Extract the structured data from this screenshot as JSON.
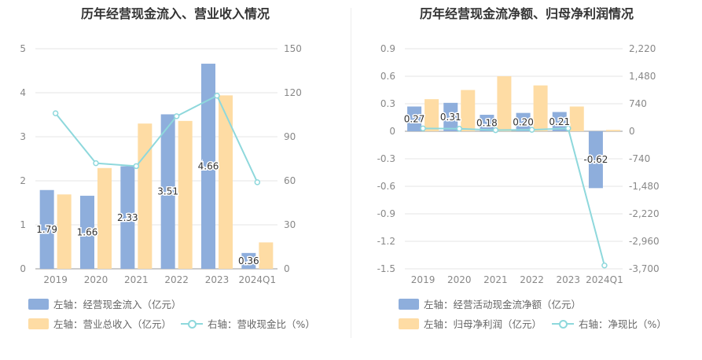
{
  "colors": {
    "bar_primary": "#8eaedc",
    "bar_secondary": "#fedca4",
    "line": "#8ed8dc",
    "grid": "#e6e6e6",
    "axis_text": "#888888"
  },
  "chart_data": [
    {
      "type": "bar",
      "title": "历年经营现金流入、营业收入情况",
      "categories": [
        "2019",
        "2020",
        "2021",
        "2022",
        "2023",
        "2024Q1"
      ],
      "y_left": {
        "min": 0,
        "max": 5,
        "ticks": [
          "0",
          "1",
          "2",
          "3",
          "4",
          "5"
        ]
      },
      "y_right": {
        "min": 0,
        "max": 150,
        "ticks": [
          "0",
          "30",
          "60",
          "90",
          "120",
          "150"
        ]
      },
      "series": [
        {
          "name": "左轴：经营现金流入（亿元）",
          "axis": "left",
          "kind": "bar",
          "values": [
            1.79,
            1.66,
            2.33,
            3.51,
            4.66,
            0.36
          ],
          "labels": [
            "1.79",
            "1.66",
            "2.33",
            "3.51",
            "4.66",
            "0.36"
          ]
        },
        {
          "name": "左轴：营业总收入（亿元）",
          "axis": "left",
          "kind": "bar",
          "values": [
            1.69,
            2.29,
            3.3,
            3.36,
            3.94,
            0.6
          ]
        },
        {
          "name": "右轴：营收现金比（%）",
          "axis": "right",
          "kind": "line",
          "values": [
            106,
            72,
            70,
            104,
            118,
            59
          ]
        }
      ],
      "legend": [
        "左轴：经营现金流入（亿元）",
        "左轴：营业总收入（亿元）",
        "右轴：营收现金比（%）"
      ]
    },
    {
      "type": "bar",
      "title": "历年经营现金流净额、归母净利润情况",
      "categories": [
        "2019",
        "2020",
        "2021",
        "2022",
        "2023",
        "2024Q1"
      ],
      "y_left": {
        "min": -1.5,
        "max": 0.9,
        "ticks": [
          "0.9",
          "0.6",
          "0.3",
          "0",
          "-0.3",
          "-0.6",
          "-0.9",
          "-1.2",
          "-1.5"
        ]
      },
      "y_right": {
        "min": -3700,
        "max": 2220,
        "ticks": [
          "2,220",
          "1,480",
          "740",
          "0",
          "-740",
          "-1,480",
          "-2,220",
          "-2,960",
          "-3,700"
        ]
      },
      "series": [
        {
          "name": "左轴：经营活动现金流净额（亿元）",
          "axis": "left",
          "kind": "bar",
          "values": [
            0.27,
            0.31,
            0.18,
            0.2,
            0.21,
            -0.62
          ],
          "labels": [
            "0.27",
            "0.31",
            "0.18",
            "0.20",
            "0.21",
            "-0.62"
          ]
        },
        {
          "name": "左轴：归母净利润（亿元）",
          "axis": "left",
          "kind": "bar",
          "values": [
            0.35,
            0.45,
            0.6,
            0.5,
            0.27,
            0.015
          ]
        },
        {
          "name": "右轴：净现比（%）",
          "axis": "right",
          "kind": "line",
          "values": [
            77,
            68,
            30,
            40,
            78,
            -3610
          ]
        }
      ],
      "legend": [
        "左轴：经营活动现金流净额（亿元）",
        "左轴：归母净利润（亿元）",
        "右轴：净现比（%）"
      ]
    }
  ]
}
